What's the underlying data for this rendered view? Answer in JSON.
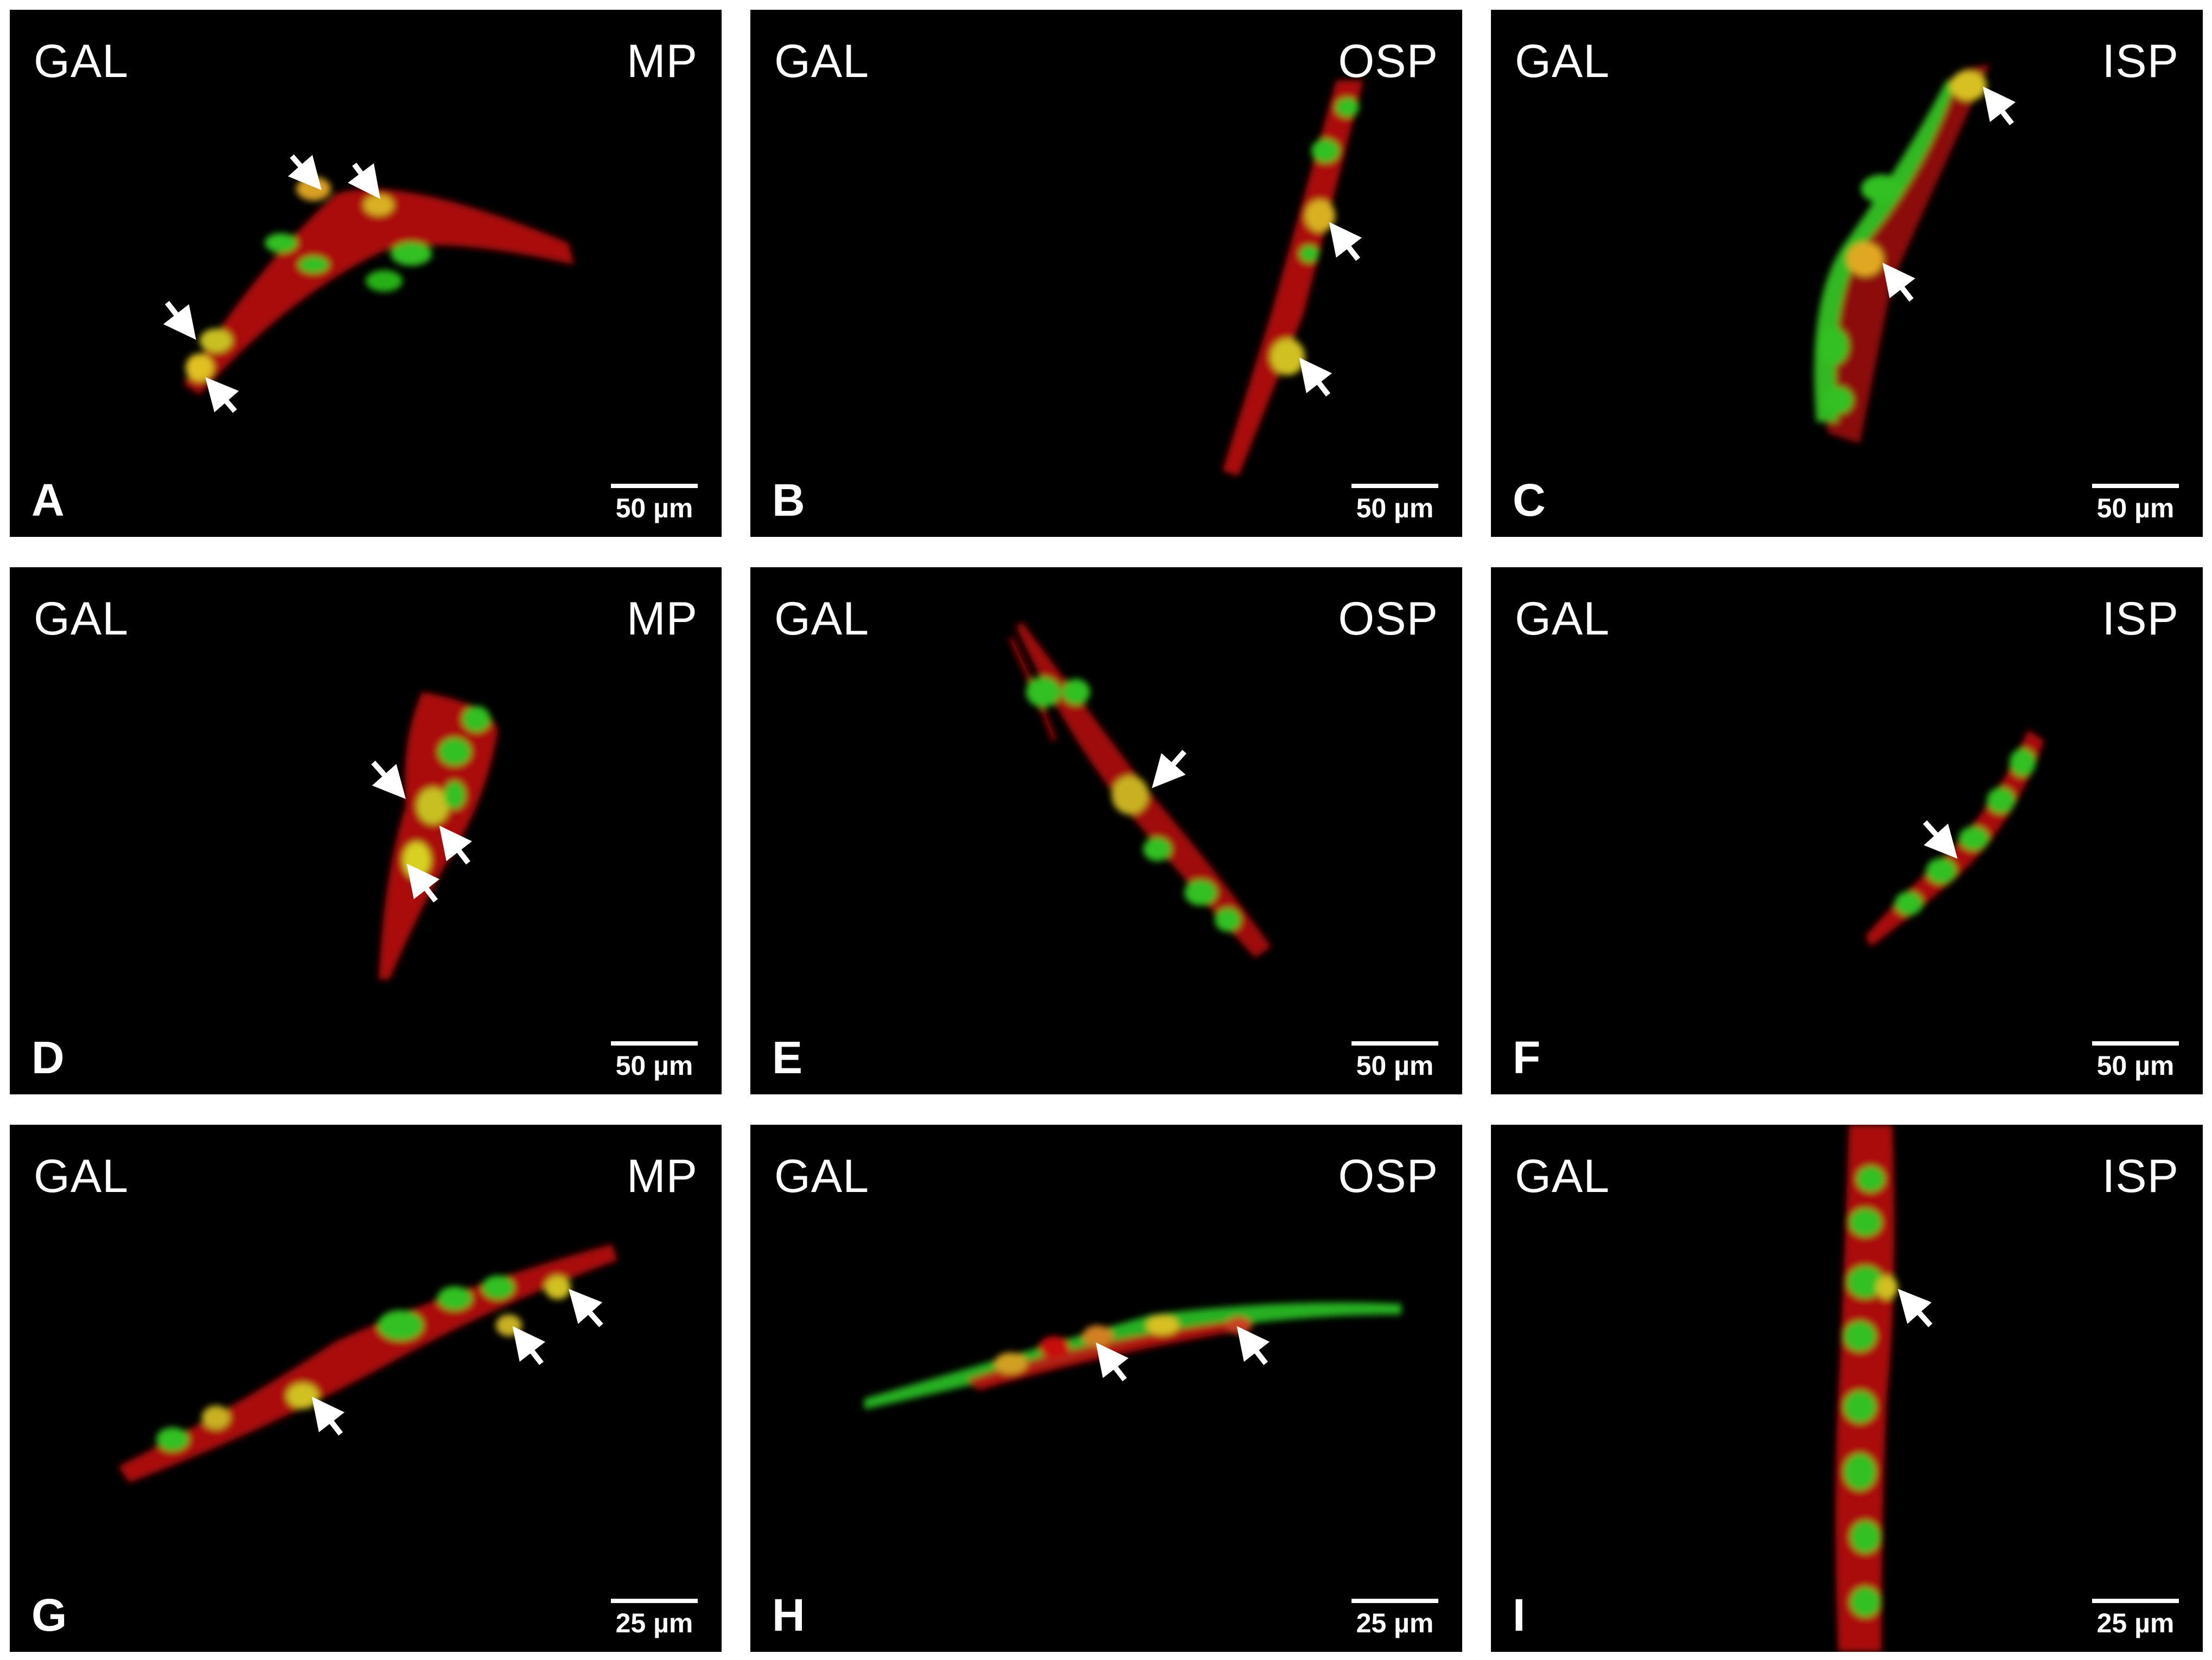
{
  "figure": {
    "panels": [
      {
        "letter": "A",
        "stain": "GAL",
        "region": "MP",
        "scale": "50 µm"
      },
      {
        "letter": "B",
        "stain": "GAL",
        "region": "OSP",
        "scale": "50 µm"
      },
      {
        "letter": "C",
        "stain": "GAL",
        "region": "ISP",
        "scale": "50 µm"
      },
      {
        "letter": "D",
        "stain": "GAL",
        "region": "MP",
        "scale": "50 µm"
      },
      {
        "letter": "E",
        "stain": "GAL",
        "region": "OSP",
        "scale": "50 µm"
      },
      {
        "letter": "F",
        "stain": "GAL",
        "region": "ISP",
        "scale": "50 µm"
      },
      {
        "letter": "G",
        "stain": "GAL",
        "region": "MP",
        "scale": "25 µm"
      },
      {
        "letter": "H",
        "stain": "GAL",
        "region": "OSP",
        "scale": "25 µm"
      },
      {
        "letter": "I",
        "stain": "GAL",
        "region": "ISP",
        "scale": "25 µm"
      }
    ],
    "colors": {
      "background": "#000000",
      "red_channel": "#d01010",
      "green_channel": "#28c020",
      "colocalized": "#d8c020",
      "arrow": "#ffffff"
    }
  }
}
